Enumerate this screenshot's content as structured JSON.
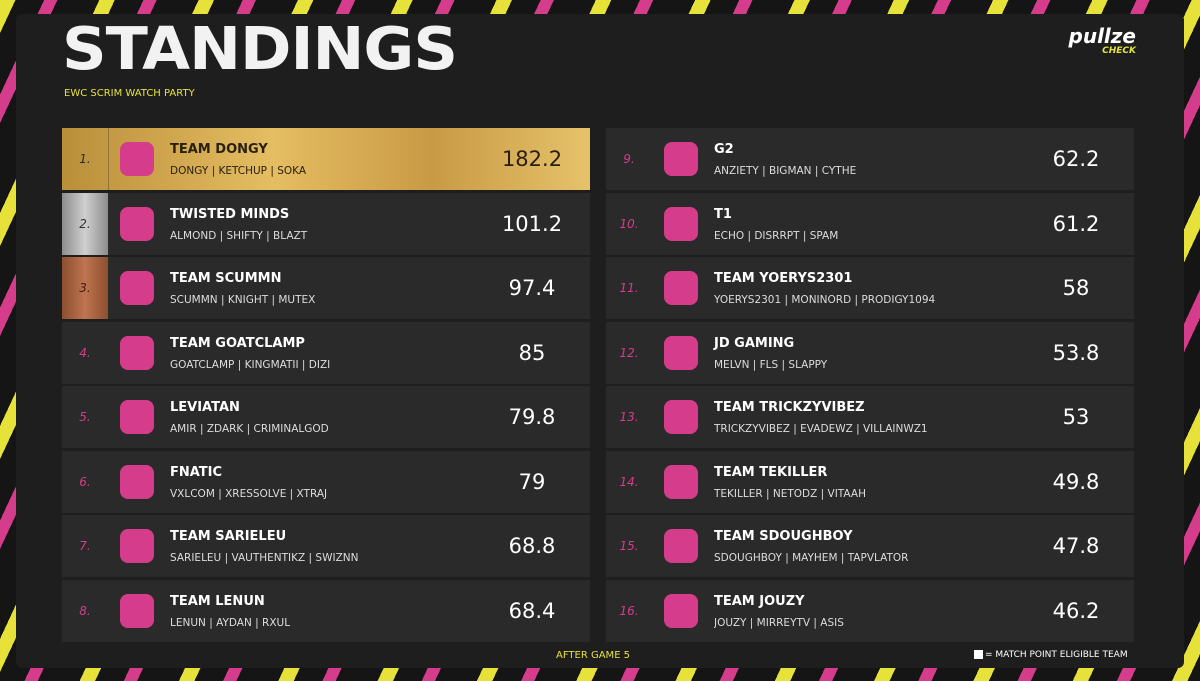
{
  "header": {
    "title": "STANDINGS",
    "subtitle": "EWC SCRIM WATCH PARTY",
    "logo": {
      "name": "pullze",
      "tagline": "CHECK"
    }
  },
  "standings": [
    {
      "rank": "1.",
      "team": "TEAM DONGY",
      "players": "DONGY | KETCHUP | SOKA",
      "points": 182.2
    },
    {
      "rank": "2.",
      "team": "TWISTED MINDS",
      "players": "ALMOND | SHIFTY | BLAZT",
      "points": 101.2
    },
    {
      "rank": "3.",
      "team": "TEAM SCUMMN",
      "players": "SCUMMN | KNIGHT | MUTEX",
      "points": 97.4
    },
    {
      "rank": "4.",
      "team": "TEAM GOATCLAMP",
      "players": "GOATCLAMP | KINGMATII | DIZI",
      "points": 85
    },
    {
      "rank": "5.",
      "team": "LEVIATAN",
      "players": "AMIR | ZDARK | CRIMINALGOD",
      "points": 79.8
    },
    {
      "rank": "6.",
      "team": "FNATIC",
      "players": "VXLCOM | XRESSOLVE | XTRAJ",
      "points": 79
    },
    {
      "rank": "7.",
      "team": "TEAM SARIELEU",
      "players": "SARIELEU | VAUTHENTIKZ | SWIZNN",
      "points": 68.8
    },
    {
      "rank": "8.",
      "team": "TEAM LENUN",
      "players": "LENUN | AYDAN | RXUL",
      "points": 68.4
    },
    {
      "rank": "9.",
      "team": "G2",
      "players": "ANZIETY | BIGMAN | CYTHE",
      "points": 62.2
    },
    {
      "rank": "10.",
      "team": "T1",
      "players": "ECHO | DISRRPT | SPAM",
      "points": 61.2
    },
    {
      "rank": "11.",
      "team": "TEAM YOERYS2301",
      "players": "YOERYS2301 | MONINORD | PRODIGY1094",
      "points": 58
    },
    {
      "rank": "12.",
      "team": "JD GAMING",
      "players": "MELVN | FLS | SLAPPY",
      "points": 53.8
    },
    {
      "rank": "13.",
      "team": "TEAM TRICKZYVIBEZ",
      "players": "TRICKZYVIBEZ | EVADEWZ | VILLAINWZ1",
      "points": 53
    },
    {
      "rank": "14.",
      "team": "TEAM TEKILLER",
      "players": "TEKILLER | NETODZ | VITAAH",
      "points": 49.8
    },
    {
      "rank": "15.",
      "team": "TEAM SDOUGHBOY",
      "players": "SDOUGHBOY | MAYHEM | TAPVLATOR",
      "points": 47.8
    },
    {
      "rank": "16.",
      "team": "TEAM JOUZY",
      "players": "JOUZY | MIRREYTV | ASIS",
      "points": 46.2
    }
  ],
  "footer": {
    "note": "AFTER GAME 5",
    "legend": "= MATCH POINT ELIGIBLE TEAM"
  }
}
